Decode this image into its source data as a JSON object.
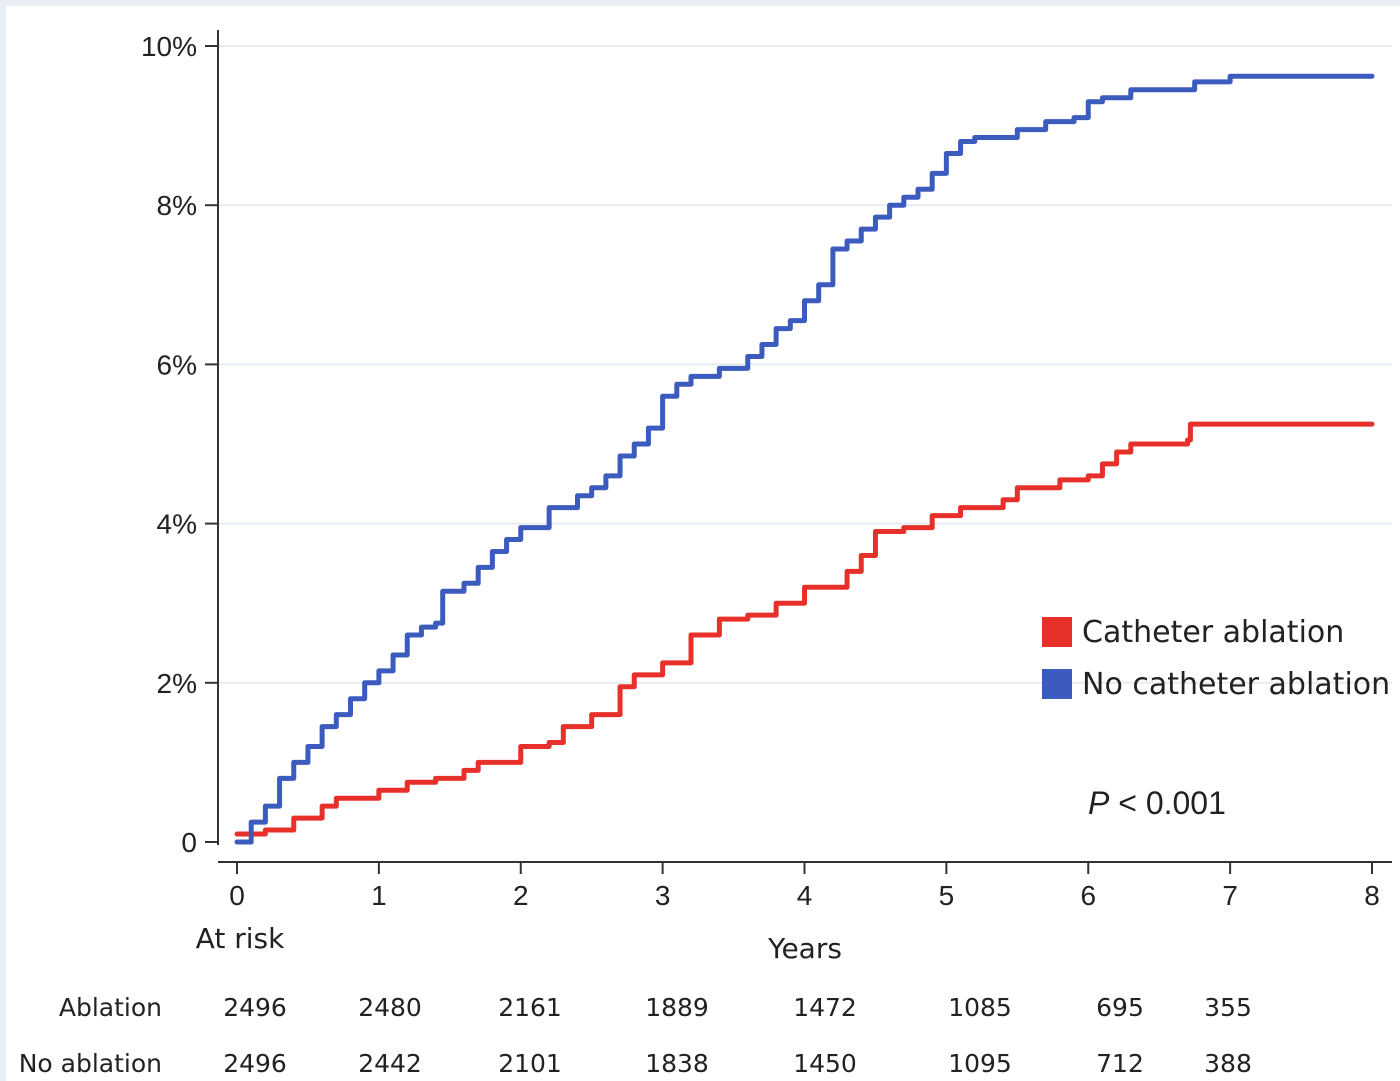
{
  "chart_data": {
    "type": "line",
    "title": "",
    "xlabel": "Years",
    "ylabel": "",
    "xlim": [
      0,
      8
    ],
    "ylim": [
      0,
      10
    ],
    "x_ticks": [
      "0",
      "1",
      "2",
      "3",
      "4",
      "5",
      "6",
      "7",
      "8"
    ],
    "y_ticks": [
      "0",
      "2%",
      "4%",
      "6%",
      "8%",
      "10%"
    ],
    "y_tick_values": [
      0,
      2,
      4,
      6,
      8,
      10
    ],
    "grid": true,
    "legend_position": "right",
    "series": [
      {
        "name": "Catheter ablation",
        "color": "#e8302a",
        "points": [
          [
            0,
            0.1
          ],
          [
            0.2,
            0.15
          ],
          [
            0.4,
            0.3
          ],
          [
            0.6,
            0.45
          ],
          [
            0.7,
            0.55
          ],
          [
            0.9,
            0.55
          ],
          [
            1.0,
            0.65
          ],
          [
            1.2,
            0.75
          ],
          [
            1.4,
            0.8
          ],
          [
            1.6,
            0.9
          ],
          [
            1.7,
            1.0
          ],
          [
            1.8,
            1.0
          ],
          [
            2.0,
            1.2
          ],
          [
            2.2,
            1.25
          ],
          [
            2.3,
            1.45
          ],
          [
            2.5,
            1.6
          ],
          [
            2.7,
            1.95
          ],
          [
            2.8,
            2.1
          ],
          [
            3.0,
            2.25
          ],
          [
            3.2,
            2.6
          ],
          [
            3.4,
            2.8
          ],
          [
            3.6,
            2.85
          ],
          [
            3.7,
            2.85
          ],
          [
            3.8,
            3.0
          ],
          [
            4.0,
            3.2
          ],
          [
            4.2,
            3.2
          ],
          [
            4.3,
            3.4
          ],
          [
            4.4,
            3.6
          ],
          [
            4.5,
            3.9
          ],
          [
            4.7,
            3.95
          ],
          [
            4.9,
            4.1
          ],
          [
            5.1,
            4.2
          ],
          [
            5.4,
            4.3
          ],
          [
            5.5,
            4.45
          ],
          [
            5.8,
            4.55
          ],
          [
            6.0,
            4.6
          ],
          [
            6.1,
            4.75
          ],
          [
            6.2,
            4.9
          ],
          [
            6.3,
            5.0
          ],
          [
            6.5,
            5.0
          ],
          [
            6.7,
            5.05
          ],
          [
            6.72,
            5.25
          ],
          [
            7.2,
            5.25
          ],
          [
            8.0,
            5.25
          ]
        ]
      },
      {
        "name": "No catheter ablation",
        "color": "#3c5bbf",
        "points": [
          [
            0,
            0.0
          ],
          [
            0.1,
            0.25
          ],
          [
            0.2,
            0.45
          ],
          [
            0.3,
            0.8
          ],
          [
            0.4,
            1.0
          ],
          [
            0.5,
            1.2
          ],
          [
            0.6,
            1.45
          ],
          [
            0.7,
            1.6
          ],
          [
            0.8,
            1.8
          ],
          [
            0.9,
            2.0
          ],
          [
            1.0,
            2.15
          ],
          [
            1.1,
            2.35
          ],
          [
            1.2,
            2.6
          ],
          [
            1.3,
            2.7
          ],
          [
            1.4,
            2.75
          ],
          [
            1.45,
            3.15
          ],
          [
            1.6,
            3.25
          ],
          [
            1.7,
            3.45
          ],
          [
            1.8,
            3.65
          ],
          [
            1.9,
            3.8
          ],
          [
            2.0,
            3.95
          ],
          [
            2.2,
            4.2
          ],
          [
            2.4,
            4.35
          ],
          [
            2.5,
            4.45
          ],
          [
            2.6,
            4.6
          ],
          [
            2.7,
            4.85
          ],
          [
            2.8,
            5.0
          ],
          [
            2.9,
            5.2
          ],
          [
            3.0,
            5.6
          ],
          [
            3.1,
            5.75
          ],
          [
            3.2,
            5.85
          ],
          [
            3.4,
            5.95
          ],
          [
            3.6,
            6.1
          ],
          [
            3.7,
            6.25
          ],
          [
            3.8,
            6.45
          ],
          [
            3.9,
            6.55
          ],
          [
            4.0,
            6.8
          ],
          [
            4.1,
            7.0
          ],
          [
            4.2,
            7.45
          ],
          [
            4.3,
            7.55
          ],
          [
            4.4,
            7.7
          ],
          [
            4.5,
            7.85
          ],
          [
            4.6,
            8.0
          ],
          [
            4.7,
            8.1
          ],
          [
            4.8,
            8.2
          ],
          [
            4.9,
            8.4
          ],
          [
            5.0,
            8.65
          ],
          [
            5.1,
            8.8
          ],
          [
            5.2,
            8.85
          ],
          [
            5.5,
            8.95
          ],
          [
            5.7,
            9.05
          ],
          [
            5.9,
            9.1
          ],
          [
            6.0,
            9.3
          ],
          [
            6.1,
            9.35
          ],
          [
            6.3,
            9.45
          ],
          [
            6.75,
            9.55
          ],
          [
            7.0,
            9.62
          ],
          [
            7.5,
            9.62
          ],
          [
            8.0,
            9.62
          ]
        ]
      }
    ],
    "annotations": {
      "p_value_italic": "P",
      "p_value_rest": " < 0.001"
    },
    "at_risk": {
      "heading": "At risk",
      "rows": [
        {
          "label": "Ablation",
          "values": [
            "2496",
            "2480",
            "2161",
            "1889",
            "1472",
            "1085",
            "695",
            "355"
          ]
        },
        {
          "label": "No ablation",
          "values": [
            "2496",
            "2442",
            "2101",
            "1838",
            "1450",
            "1095",
            "712",
            "388"
          ]
        }
      ]
    }
  }
}
